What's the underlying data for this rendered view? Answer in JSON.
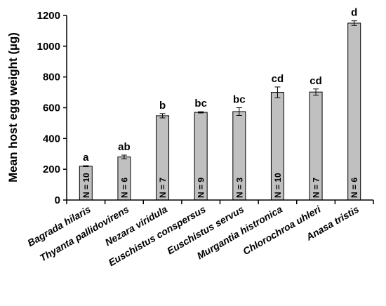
{
  "chart_data": {
    "type": "bar",
    "title": "",
    "xlabel": "",
    "ylabel": "Mean host egg weight (µg)",
    "ylim": [
      0,
      1200
    ],
    "yticks": [
      0,
      200,
      400,
      600,
      800,
      1000,
      1200
    ],
    "grid": false,
    "bar_color": "#c0c0c0",
    "categories": [
      "Bagrada hilaris",
      "Thyanta pallidovirens",
      "Nezara viridula",
      "Euschistus conspersus",
      "Euschistus servus",
      "Murgantia histronica",
      "Chlorochroa uhleri",
      "Anasa tristis"
    ],
    "values": [
      220,
      280,
      548,
      570,
      575,
      700,
      702,
      1150
    ],
    "errors": [
      3,
      12,
      14,
      4,
      25,
      35,
      20,
      15
    ],
    "significance": [
      "a",
      "ab",
      "b",
      "bc",
      "bc",
      "cd",
      "cd",
      "d"
    ],
    "n_labels": [
      "N = 10",
      "N = 6",
      "N = 7",
      "N = 9",
      "N = 3",
      "N = 10",
      "N = 7",
      "N = 6"
    ]
  }
}
